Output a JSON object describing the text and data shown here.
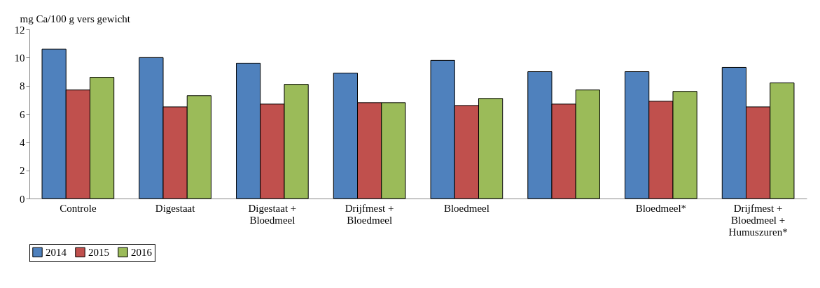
{
  "chart_data": {
    "type": "bar",
    "ylabel": "mg Ca/100 g vers gewicht",
    "categories": [
      "Controle",
      "Digestaat",
      "Digestaat +\nBloedmeel",
      "Drijfmest +\nBloedmeel",
      "Bloedmeel",
      null,
      "Bloedmeel*",
      "Drijfmest +\nBloedmeel +\nHumuszuren*"
    ],
    "series": [
      {
        "name": "2014",
        "color": "#4f81bd",
        "values": [
          10.6,
          10.0,
          9.6,
          8.9,
          9.8,
          9.0,
          9.0,
          9.3
        ]
      },
      {
        "name": "2015",
        "color": "#c0504d",
        "values": [
          7.7,
          6.5,
          6.7,
          6.8,
          6.6,
          6.7,
          6.9,
          6.5
        ]
      },
      {
        "name": "2016",
        "color": "#9bbb59",
        "values": [
          8.6,
          7.3,
          8.1,
          6.8,
          7.1,
          7.7,
          7.6,
          8.2
        ]
      }
    ],
    "ylim": [
      0,
      12
    ],
    "yticks": [
      0,
      2,
      4,
      6,
      8,
      10,
      12
    ],
    "grid": false,
    "legend": "bottom"
  }
}
